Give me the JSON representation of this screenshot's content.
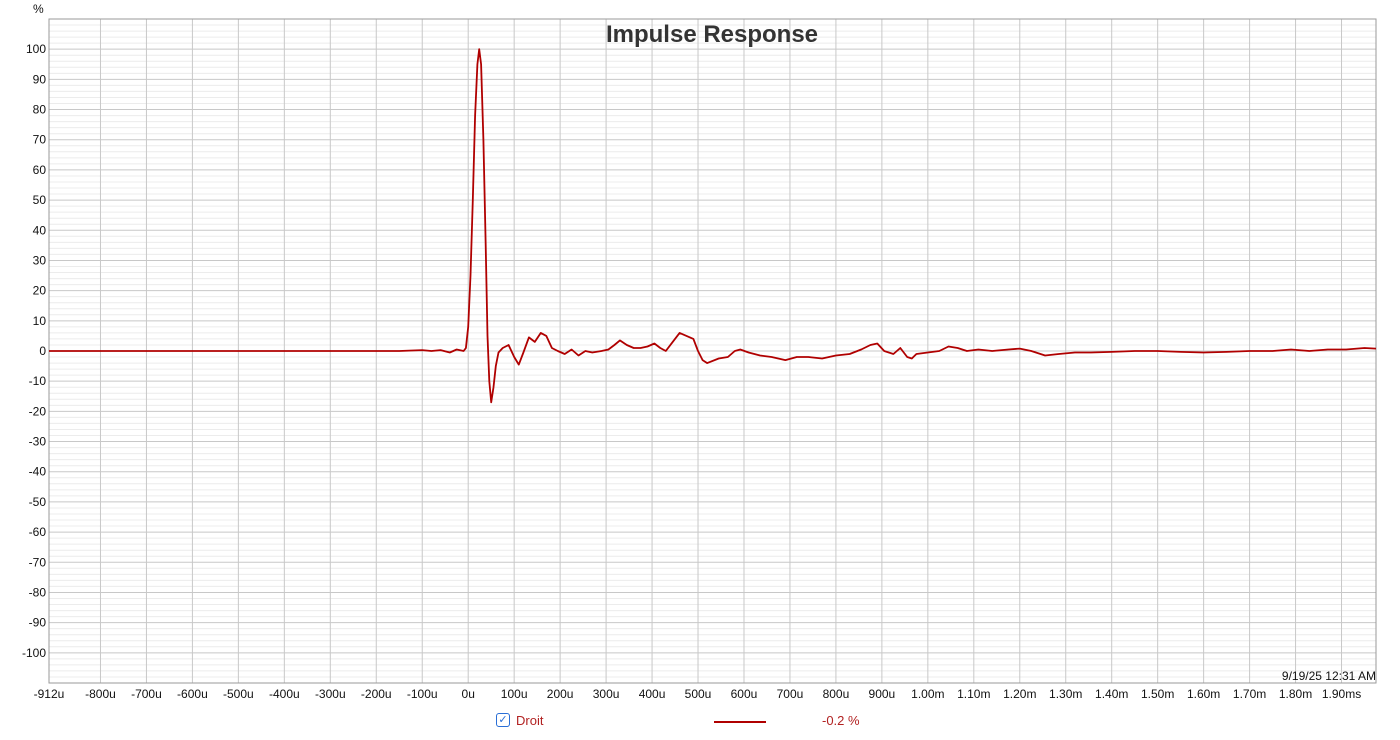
{
  "chart_data": {
    "type": "line",
    "title": "Impulse Response",
    "ylabel": "%",
    "xlabel": "",
    "xlim": [
      -912,
      1975
    ],
    "ylim": [
      -110,
      110
    ],
    "x_ticks": [
      {
        "v": -912,
        "label": "-912u"
      },
      {
        "v": -800,
        "label": "-800u"
      },
      {
        "v": -700,
        "label": "-700u"
      },
      {
        "v": -600,
        "label": "-600u"
      },
      {
        "v": -500,
        "label": "-500u"
      },
      {
        "v": -400,
        "label": "-400u"
      },
      {
        "v": -300,
        "label": "-300u"
      },
      {
        "v": -200,
        "label": "-200u"
      },
      {
        "v": -100,
        "label": "-100u"
      },
      {
        "v": 0,
        "label": "0u"
      },
      {
        "v": 100,
        "label": "100u"
      },
      {
        "v": 200,
        "label": "200u"
      },
      {
        "v": 300,
        "label": "300u"
      },
      {
        "v": 400,
        "label": "400u"
      },
      {
        "v": 500,
        "label": "500u"
      },
      {
        "v": 600,
        "label": "600u"
      },
      {
        "v": 700,
        "label": "700u"
      },
      {
        "v": 800,
        "label": "800u"
      },
      {
        "v": 900,
        "label": "900u"
      },
      {
        "v": 1000,
        "label": "1.00m"
      },
      {
        "v": 1100,
        "label": "1.10m"
      },
      {
        "v": 1200,
        "label": "1.20m"
      },
      {
        "v": 1300,
        "label": "1.30m"
      },
      {
        "v": 1400,
        "label": "1.40m"
      },
      {
        "v": 1500,
        "label": "1.50m"
      },
      {
        "v": 1600,
        "label": "1.60m"
      },
      {
        "v": 1700,
        "label": "1.70m"
      },
      {
        "v": 1800,
        "label": "1.80m"
      },
      {
        "v": 1900,
        "label": "1.90ms"
      }
    ],
    "y_ticks": [
      100,
      90,
      80,
      70,
      60,
      50,
      40,
      30,
      20,
      10,
      0,
      -10,
      -20,
      -30,
      -40,
      -50,
      -60,
      -70,
      -80,
      -90,
      -100
    ],
    "grid": true,
    "series": [
      {
        "name": "Droit",
        "color": "#b00000",
        "points": [
          [
            -912,
            0
          ],
          [
            -800,
            0
          ],
          [
            -700,
            0
          ],
          [
            -600,
            0
          ],
          [
            -500,
            0
          ],
          [
            -400,
            0
          ],
          [
            -300,
            0
          ],
          [
            -200,
            0
          ],
          [
            -150,
            0
          ],
          [
            -100,
            0.3
          ],
          [
            -80,
            0
          ],
          [
            -60,
            0.3
          ],
          [
            -40,
            -0.5
          ],
          [
            -25,
            0.5
          ],
          [
            -10,
            0
          ],
          [
            -5,
            1
          ],
          [
            0,
            8
          ],
          [
            5,
            25
          ],
          [
            10,
            50
          ],
          [
            15,
            78
          ],
          [
            20,
            95
          ],
          [
            24,
            100
          ],
          [
            28,
            95
          ],
          [
            33,
            70
          ],
          [
            38,
            35
          ],
          [
            42,
            5
          ],
          [
            46,
            -10
          ],
          [
            50,
            -17
          ],
          [
            55,
            -12
          ],
          [
            60,
            -5
          ],
          [
            66,
            -0.5
          ],
          [
            75,
            1
          ],
          [
            88,
            2
          ],
          [
            100,
            -2
          ],
          [
            110,
            -4.5
          ],
          [
            120,
            -0.5
          ],
          [
            132,
            4.5
          ],
          [
            145,
            3
          ],
          [
            158,
            6
          ],
          [
            170,
            5
          ],
          [
            182,
            1
          ],
          [
            195,
            0
          ],
          [
            210,
            -1
          ],
          [
            225,
            0.5
          ],
          [
            240,
            -1.5
          ],
          [
            255,
            0
          ],
          [
            270,
            -0.5
          ],
          [
            290,
            0
          ],
          [
            305,
            0.5
          ],
          [
            318,
            2
          ],
          [
            330,
            3.5
          ],
          [
            345,
            2
          ],
          [
            360,
            1
          ],
          [
            375,
            1
          ],
          [
            390,
            1.5
          ],
          [
            405,
            2.5
          ],
          [
            418,
            1
          ],
          [
            430,
            0
          ],
          [
            445,
            3
          ],
          [
            460,
            6
          ],
          [
            475,
            5
          ],
          [
            490,
            4
          ],
          [
            500,
            0
          ],
          [
            510,
            -3
          ],
          [
            520,
            -4
          ],
          [
            545,
            -2.5
          ],
          [
            565,
            -2
          ],
          [
            580,
            0
          ],
          [
            592,
            0.5
          ],
          [
            610,
            -0.5
          ],
          [
            635,
            -1.5
          ],
          [
            660,
            -2
          ],
          [
            690,
            -3
          ],
          [
            715,
            -2
          ],
          [
            740,
            -2
          ],
          [
            770,
            -2.5
          ],
          [
            800,
            -1.5
          ],
          [
            830,
            -1
          ],
          [
            855,
            0.5
          ],
          [
            875,
            2
          ],
          [
            890,
            2.5
          ],
          [
            905,
            0
          ],
          [
            925,
            -1
          ],
          [
            940,
            1
          ],
          [
            955,
            -2
          ],
          [
            965,
            -2.5
          ],
          [
            975,
            -1
          ],
          [
            1000,
            -0.5
          ],
          [
            1025,
            0
          ],
          [
            1045,
            1.5
          ],
          [
            1065,
            1
          ],
          [
            1085,
            0
          ],
          [
            1110,
            0.5
          ],
          [
            1140,
            0
          ],
          [
            1175,
            0.5
          ],
          [
            1200,
            0.8
          ],
          [
            1225,
            0
          ],
          [
            1255,
            -1.5
          ],
          [
            1285,
            -1
          ],
          [
            1320,
            -0.5
          ],
          [
            1355,
            -0.5
          ],
          [
            1400,
            -0.3
          ],
          [
            1450,
            0
          ],
          [
            1500,
            0
          ],
          [
            1550,
            -0.3
          ],
          [
            1600,
            -0.5
          ],
          [
            1650,
            -0.3
          ],
          [
            1700,
            0
          ],
          [
            1750,
            0
          ],
          [
            1790,
            0.5
          ],
          [
            1830,
            0
          ],
          [
            1870,
            0.5
          ],
          [
            1910,
            0.5
          ],
          [
            1950,
            1
          ],
          [
            1975,
            0.8
          ]
        ]
      }
    ]
  },
  "timestamp": "9/19/25 12:31 AM",
  "legend": {
    "checked_glyph": "✓",
    "series_name": "Droit",
    "value": "-0.2 %"
  }
}
